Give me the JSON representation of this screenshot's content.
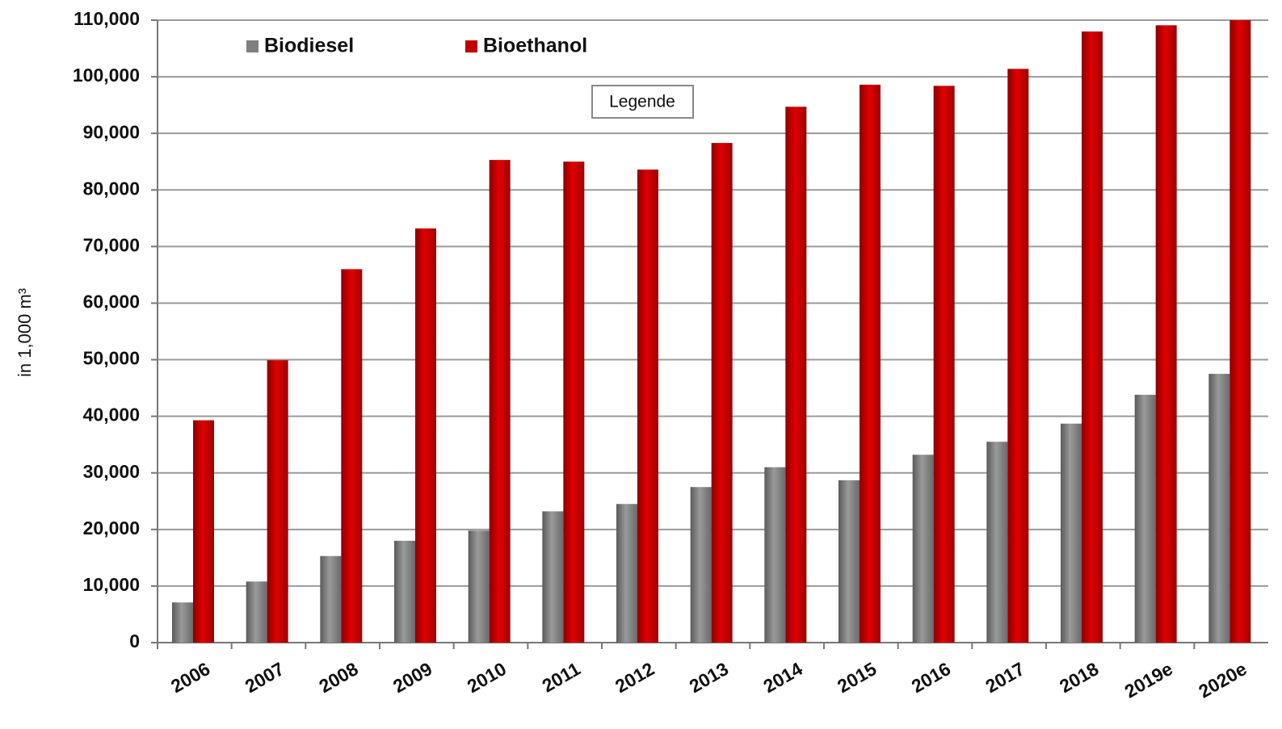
{
  "chart_data": {
    "type": "bar",
    "y_label": "in 1,000 m³",
    "annotation": "Legende",
    "categories": [
      "2006",
      "2007",
      "2008",
      "2009",
      "2010",
      "2011",
      "2012",
      "2013",
      "2014",
      "2015",
      "2016",
      "2017",
      "2018",
      "2019e",
      "2020e"
    ],
    "series": [
      {
        "name": "Biodiesel",
        "color": "#7f7f7f",
        "values": [
          7100,
          10800,
          15300,
          18000,
          19800,
          23200,
          24500,
          27500,
          31000,
          28700,
          33200,
          35500,
          38700,
          43800,
          47500
        ]
      },
      {
        "name": "Bioethanol",
        "color": "#c00000",
        "values": [
          39300,
          49900,
          66000,
          73200,
          85300,
          85000,
          83600,
          88300,
          94700,
          98600,
          98400,
          101400,
          108000,
          109100,
          110000
        ]
      }
    ],
    "ylim": [
      0,
      110000
    ],
    "yticks": [
      0,
      {
        "value": 10000,
        "label": "10,000"
      },
      {
        "value": 20000,
        "label": "20,000"
      },
      {
        "value": 30000,
        "label": "30,000"
      },
      {
        "value": 40000,
        "label": "40,000"
      },
      {
        "value": 50000,
        "label": "50,000"
      },
      {
        "value": 60000,
        "label": "60,000"
      },
      {
        "value": 70000,
        "label": "70,000"
      },
      {
        "value": 80000,
        "label": "80,000"
      },
      {
        "value": 90000,
        "label": "90,000"
      },
      {
        "value": 100000,
        "label": "100,000"
      },
      {
        "value": 110000,
        "label": "110,000"
      }
    ],
    "grid": true,
    "legend": "top"
  }
}
